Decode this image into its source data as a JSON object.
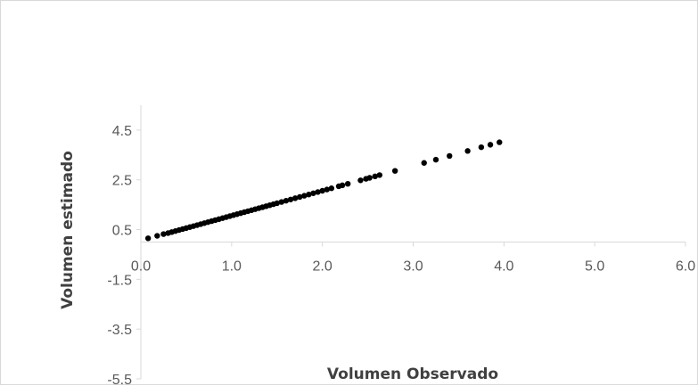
{
  "chart_data": {
    "type": "scatter",
    "xlabel": "Volumen Observado",
    "ylabel": "Volumen estimado",
    "xlim": [
      0.0,
      6.0
    ],
    "ylim": [
      -5.5,
      5.5
    ],
    "xticks": [
      "0.0",
      "1.0",
      "2.0",
      "3.0",
      "4.0",
      "5.0",
      "6.0"
    ],
    "yticks": [
      "4.5",
      "2.5",
      "0.5",
      "-1.5",
      "-3.5",
      "-5.5"
    ],
    "xtick_values": [
      0,
      1,
      2,
      3,
      4,
      5,
      6
    ],
    "ytick_values": [
      4.5,
      2.5,
      0.5,
      -1.5,
      -3.5,
      -5.5
    ],
    "grid": false,
    "legend": "none",
    "marker_color": "#000000",
    "axis_color": "#d9d9d9",
    "series": [
      {
        "x": [
          0.08,
          0.18,
          0.25,
          0.3,
          0.34,
          0.38,
          0.42,
          0.46,
          0.5,
          0.54,
          0.58,
          0.62,
          0.66,
          0.7,
          0.74,
          0.78,
          0.82,
          0.86,
          0.9,
          0.94,
          0.98,
          1.02,
          1.06,
          1.1,
          1.14,
          1.18,
          1.22,
          1.26,
          1.3,
          1.34,
          1.38,
          1.42,
          1.46,
          1.5,
          1.55,
          1.6,
          1.65,
          1.7,
          1.75,
          1.8,
          1.85,
          1.9,
          1.95,
          2.0,
          2.05,
          2.1,
          2.18,
          2.22,
          2.28,
          2.42,
          2.48,
          2.52,
          2.58,
          2.63,
          2.8,
          3.12,
          3.25,
          3.4,
          3.6,
          3.75,
          3.85,
          3.95
        ],
        "y": [
          0.15,
          0.25,
          0.32,
          0.36,
          0.4,
          0.44,
          0.48,
          0.52,
          0.56,
          0.6,
          0.64,
          0.68,
          0.72,
          0.76,
          0.8,
          0.84,
          0.88,
          0.92,
          0.96,
          1.0,
          1.04,
          1.08,
          1.12,
          1.16,
          1.2,
          1.24,
          1.28,
          1.32,
          1.36,
          1.4,
          1.44,
          1.48,
          1.52,
          1.56,
          1.61,
          1.66,
          1.71,
          1.76,
          1.81,
          1.86,
          1.91,
          1.96,
          2.01,
          2.06,
          2.11,
          2.16,
          2.24,
          2.28,
          2.34,
          2.48,
          2.54,
          2.58,
          2.64,
          2.69,
          2.86,
          3.18,
          3.31,
          3.46,
          3.66,
          3.81,
          3.91,
          4.01
        ]
      }
    ]
  }
}
